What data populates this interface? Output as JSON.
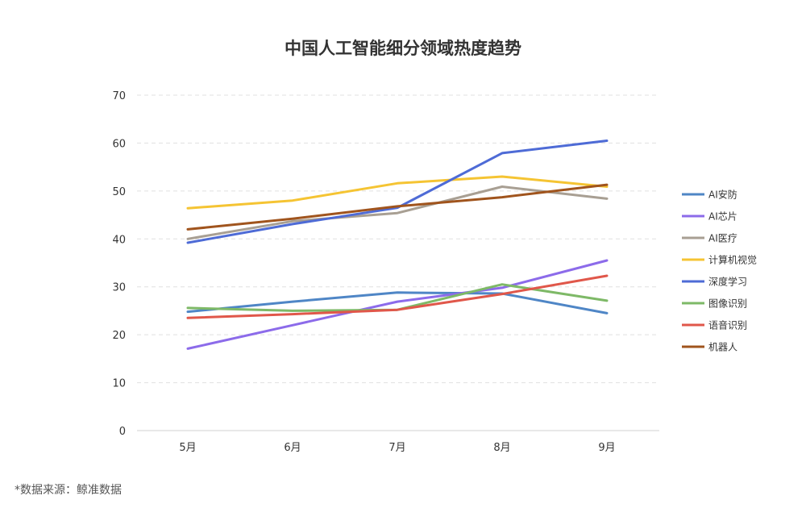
{
  "chart_data": {
    "type": "line",
    "title": "中国人工智能细分领域热度趋势",
    "xlabel": "",
    "ylabel": "",
    "categories": [
      "5月",
      "6月",
      "7月",
      "8月",
      "9月"
    ],
    "ylim": [
      0,
      70
    ],
    "yticks": [
      0,
      10,
      20,
      30,
      40,
      50,
      60,
      70
    ],
    "grid": true,
    "legend_position": "right",
    "series": [
      {
        "name": "AI安防",
        "color": "#4f86c6",
        "values": [
          24.8,
          26.9,
          28.8,
          28.6,
          24.5
        ]
      },
      {
        "name": "AI芯片",
        "color": "#8c6bea",
        "values": [
          17.1,
          22.0,
          26.9,
          29.8,
          35.5
        ]
      },
      {
        "name": "AI医疗",
        "color": "#a89f93",
        "values": [
          40.0,
          43.7,
          45.4,
          50.9,
          48.4
        ]
      },
      {
        "name": "计算机视觉",
        "color": "#f5c433",
        "values": [
          46.4,
          48.0,
          51.6,
          53.0,
          50.9
        ]
      },
      {
        "name": "深度学习",
        "color": "#4e6bd6",
        "values": [
          39.2,
          43.1,
          46.5,
          57.9,
          60.5
        ]
      },
      {
        "name": "图像识别",
        "color": "#7eb967",
        "values": [
          25.6,
          25.0,
          25.2,
          30.5,
          27.1
        ]
      },
      {
        "name": "语音识别",
        "color": "#e0574a",
        "values": [
          23.5,
          24.3,
          25.2,
          28.5,
          32.3
        ]
      },
      {
        "name": "机器人",
        "color": "#a0541d",
        "values": [
          42.0,
          44.2,
          46.8,
          48.7,
          51.3
        ]
      }
    ]
  },
  "source_note": "*数据来源：鲸准数据"
}
